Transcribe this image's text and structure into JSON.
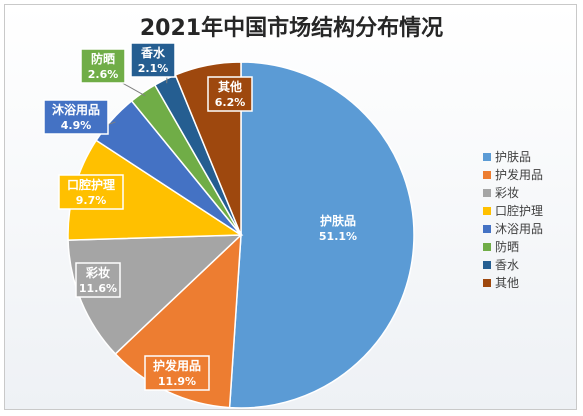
{
  "chart_data": {
    "type": "pie",
    "title": "2021年中国市场结构分布情况",
    "slices": [
      {
        "name": "护肤品",
        "value": 51.1,
        "label": "51.1%",
        "color": "#5B9BD5"
      },
      {
        "name": "护发用品",
        "value": 11.9,
        "label": "11.9%",
        "color": "#ED7D31"
      },
      {
        "name": "彩妆",
        "value": 11.6,
        "label": "11.6%",
        "color": "#A5A5A5"
      },
      {
        "name": "口腔护理",
        "value": 9.7,
        "label": "9.7%",
        "color": "#FFC000"
      },
      {
        "name": "沐浴用品",
        "value": 4.9,
        "label": "4.9%",
        "color": "#4472C4"
      },
      {
        "name": "防晒",
        "value": 2.6,
        "label": "2.6%",
        "color": "#70AD47"
      },
      {
        "name": "香水",
        "value": 2.1,
        "label": "2.1%",
        "color": "#255E91"
      },
      {
        "name": "其他",
        "value": 6.2,
        "label": "6.2%",
        "color": "#9E480E"
      }
    ],
    "legend_position": "right",
    "start_angle": "12 o'clock, clockwise"
  }
}
